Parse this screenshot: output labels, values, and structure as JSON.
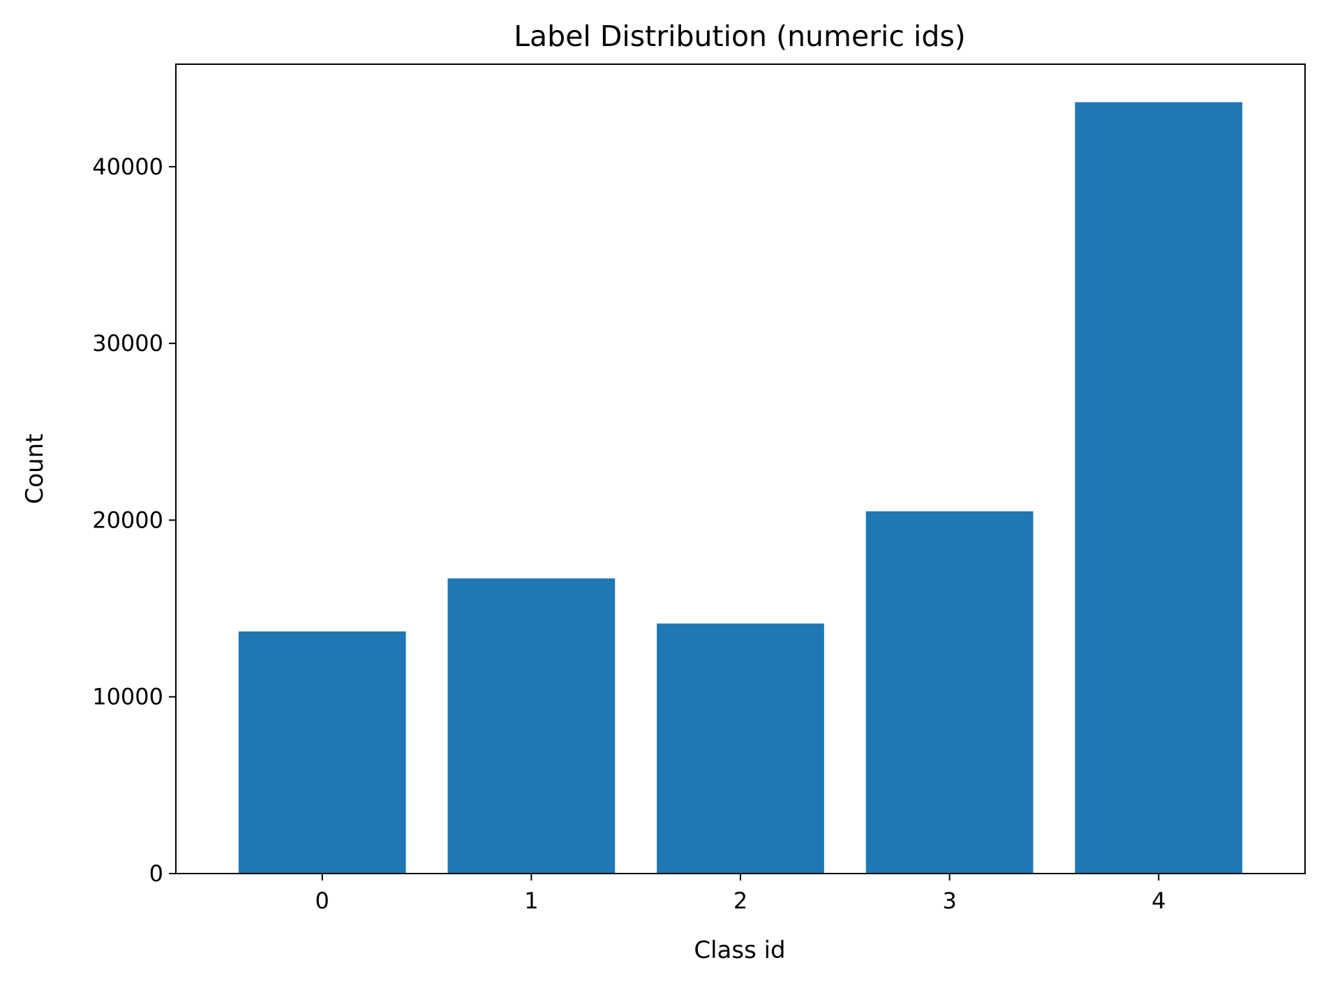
{
  "chart_data": {
    "type": "bar",
    "title": "Label Distribution (numeric ids)",
    "xlabel": "Class id",
    "ylabel": "Count",
    "categories": [
      "0",
      "1",
      "2",
      "3",
      "4"
    ],
    "values": [
      13700,
      16700,
      14150,
      20500,
      43650
    ],
    "ylim": [
      0,
      45800
    ],
    "yticks": [
      0,
      10000,
      20000,
      30000,
      40000
    ],
    "ytick_labels": [
      "0",
      "10000",
      "20000",
      "30000",
      "40000"
    ],
    "grid": false,
    "legend": "none",
    "bar_color": "#1f77b4"
  }
}
